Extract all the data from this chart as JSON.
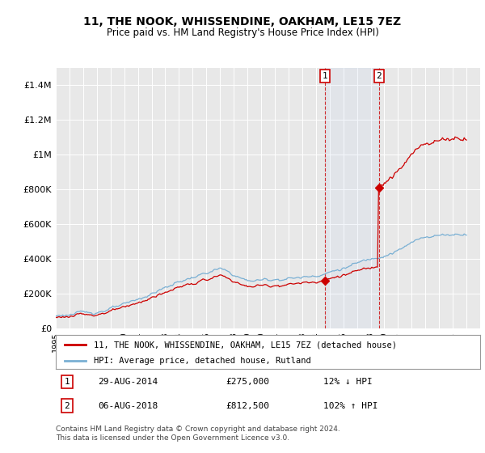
{
  "title": "11, THE NOOK, WHISSENDINE, OAKHAM, LE15 7EZ",
  "subtitle": "Price paid vs. HM Land Registry's House Price Index (HPI)",
  "ylim": [
    0,
    1500000
  ],
  "yticks": [
    0,
    200000,
    400000,
    600000,
    800000,
    1000000,
    1200000,
    1400000
  ],
  "ytick_labels": [
    "£0",
    "£200K",
    "£400K",
    "£600K",
    "£800K",
    "£1M",
    "£1.2M",
    "£1.4M"
  ],
  "background_color": "#ffffff",
  "plot_bg_color": "#e8e8e8",
  "grid_color": "#ffffff",
  "hpi_line_color": "#7ab0d4",
  "price_line_color": "#cc0000",
  "transaction1_price": 275000,
  "transaction1_pct": "12% ↓ HPI",
  "transaction1_date": "29-AUG-2014",
  "transaction1_year": 2014.67,
  "transaction2_price": 812500,
  "transaction2_pct": "102% ↑ HPI",
  "transaction2_date": "06-AUG-2018",
  "transaction2_year": 2018.6,
  "legend_label1": "11, THE NOOK, WHISSENDINE, OAKHAM, LE15 7EZ (detached house)",
  "legend_label2": "HPI: Average price, detached house, Rutland",
  "footer": "Contains HM Land Registry data © Crown copyright and database right 2024.\nThis data is licensed under the Open Government Licence v3.0.",
  "xmin": 1995,
  "xmax": 2026
}
